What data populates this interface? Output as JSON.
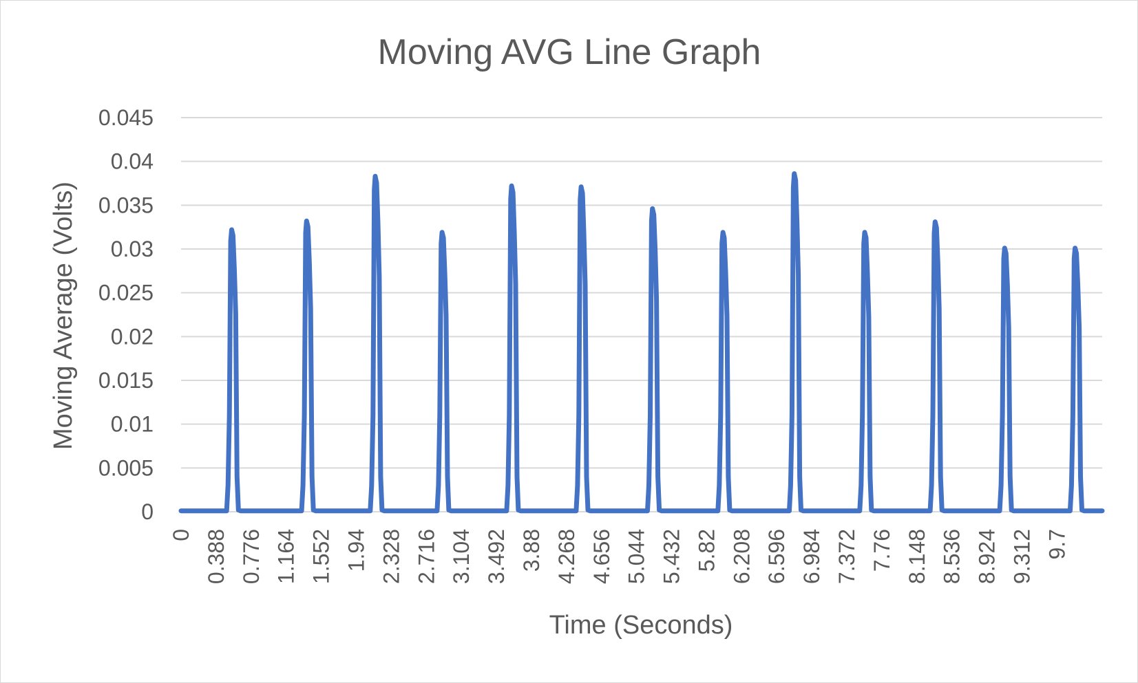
{
  "chart_data": {
    "type": "line",
    "title": "Moving AVG Line Graph",
    "xlabel": "Time (Seconds)",
    "ylabel": "Moving Average (Volts)",
    "ylim": [
      0,
      0.045
    ],
    "xlim": [
      0,
      10.2
    ],
    "grid": true,
    "legend": "none",
    "y_ticks": [
      "0",
      "0.005",
      "0.01",
      "0.015",
      "0.02",
      "0.025",
      "0.03",
      "0.035",
      "0.04",
      "0.045"
    ],
    "x_ticks": [
      "0",
      "0.388",
      "0.776",
      "1.164",
      "1.552",
      "1.94",
      "2.328",
      "2.716",
      "3.104",
      "3.492",
      "3.88",
      "4.268",
      "4.656",
      "5.044",
      "5.432",
      "5.82",
      "6.208",
      "6.596",
      "6.984",
      "7.372",
      "7.76",
      "8.148",
      "8.536",
      "8.924",
      "9.312",
      "9.7"
    ],
    "series": [
      {
        "name": "Moving Average",
        "color": "#4472c4",
        "peaks": [
          {
            "time": 0.57,
            "value": 0.0322
          },
          {
            "time": 1.4,
            "value": 0.0332
          },
          {
            "time": 2.16,
            "value": 0.0383
          },
          {
            "time": 2.9,
            "value": 0.0319
          },
          {
            "time": 3.67,
            "value": 0.0372
          },
          {
            "time": 4.44,
            "value": 0.0371
          },
          {
            "time": 5.23,
            "value": 0.0346
          },
          {
            "time": 6.01,
            "value": 0.0319
          },
          {
            "time": 6.8,
            "value": 0.0386
          },
          {
            "time": 7.58,
            "value": 0.0319
          },
          {
            "time": 8.36,
            "value": 0.0331
          },
          {
            "time": 9.13,
            "value": 0.0301
          },
          {
            "time": 9.91,
            "value": 0.0301
          }
        ],
        "baseline": 0.0001
      }
    ]
  }
}
